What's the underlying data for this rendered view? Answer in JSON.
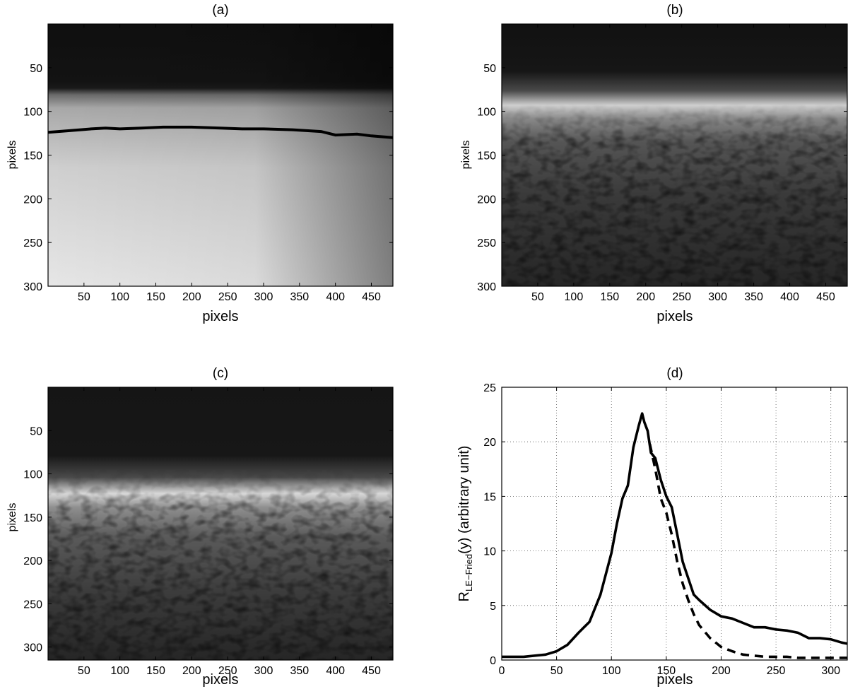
{
  "chart_data": [
    {
      "type": "heatmap",
      "title": "(a)",
      "xlabel": "pixels",
      "ylabel": "pixels",
      "xlim": [
        0,
        480
      ],
      "ylim": [
        300,
        0
      ],
      "xticks": [
        50,
        100,
        150,
        200,
        250,
        300,
        350,
        400,
        450
      ],
      "yticks": [
        50,
        100,
        150,
        200,
        250,
        300
      ],
      "colormap": "gray",
      "overlay_line": {
        "color": "#000000",
        "x": [
          0,
          30,
          60,
          80,
          100,
          130,
          160,
          200,
          240,
          270,
          300,
          340,
          380,
          400,
          430,
          450,
          480
        ],
        "y": [
          124,
          122,
          120,
          119,
          120,
          119,
          118,
          118,
          119,
          120,
          120,
          121,
          123,
          127,
          126,
          128,
          130
        ]
      }
    },
    {
      "type": "heatmap",
      "title": "(b)",
      "xlabel": "pixels",
      "ylabel": "pixels",
      "xlim": [
        0,
        480
      ],
      "ylim": [
        300,
        0
      ],
      "xticks": [
        50,
        100,
        150,
        200,
        250,
        300,
        350,
        400,
        450
      ],
      "yticks": [
        50,
        100,
        150,
        200,
        250,
        300
      ],
      "colormap": "gray"
    },
    {
      "type": "heatmap",
      "title": "(c)",
      "xlabel": "pixels",
      "ylabel": "pixels",
      "xlim": [
        0,
        480
      ],
      "ylim": [
        315,
        0
      ],
      "xticks": [
        50,
        100,
        150,
        200,
        250,
        300,
        350,
        400,
        450
      ],
      "yticks": [
        50,
        100,
        150,
        200,
        250,
        300
      ],
      "colormap": "gray"
    },
    {
      "type": "line",
      "title": "(d)",
      "xlabel": "pixels",
      "ylabel_main": "R",
      "ylabel_sub": "LE−Fried",
      "ylabel_rest": "(y) (arbitrary unit)",
      "xlim": [
        0,
        315
      ],
      "ylim": [
        0,
        25
      ],
      "xticks": [
        0,
        50,
        100,
        150,
        200,
        250,
        300
      ],
      "yticks": [
        0,
        5,
        10,
        15,
        20,
        25
      ],
      "grid": true,
      "series": [
        {
          "style": "solid",
          "x": [
            0,
            20,
            40,
            50,
            60,
            70,
            75,
            80,
            90,
            100,
            105,
            110,
            115,
            120,
            125,
            128,
            130,
            133,
            136,
            140,
            145,
            150,
            155,
            160,
            165,
            170,
            175,
            180,
            190,
            200,
            210,
            220,
            230,
            240,
            250,
            260,
            270,
            280,
            290,
            300,
            310,
            315
          ],
          "y": [
            0.3,
            0.3,
            0.5,
            0.8,
            1.4,
            2.5,
            3.0,
            3.5,
            6.0,
            9.8,
            12.5,
            14.8,
            16.0,
            19.5,
            21.5,
            22.6,
            21.8,
            21.0,
            19.0,
            18.5,
            16.5,
            15.0,
            14.0,
            11.5,
            9.0,
            7.5,
            6.0,
            5.5,
            4.6,
            4.0,
            3.8,
            3.4,
            3.0,
            3.0,
            2.8,
            2.7,
            2.5,
            2.0,
            2.0,
            1.9,
            1.6,
            1.5
          ]
        },
        {
          "style": "dashed",
          "x": [
            135,
            140,
            145,
            150,
            155,
            160,
            165,
            170,
            175,
            180,
            190,
            200,
            210,
            220,
            230,
            240,
            250,
            260,
            270,
            280,
            290,
            300,
            315
          ],
          "y": [
            19.8,
            17.5,
            14.8,
            13.5,
            11.5,
            9.0,
            7.0,
            5.5,
            4.2,
            3.2,
            2.0,
            1.2,
            0.8,
            0.5,
            0.4,
            0.3,
            0.3,
            0.3,
            0.2,
            0.2,
            0.2,
            0.2,
            0.2
          ]
        }
      ]
    }
  ]
}
